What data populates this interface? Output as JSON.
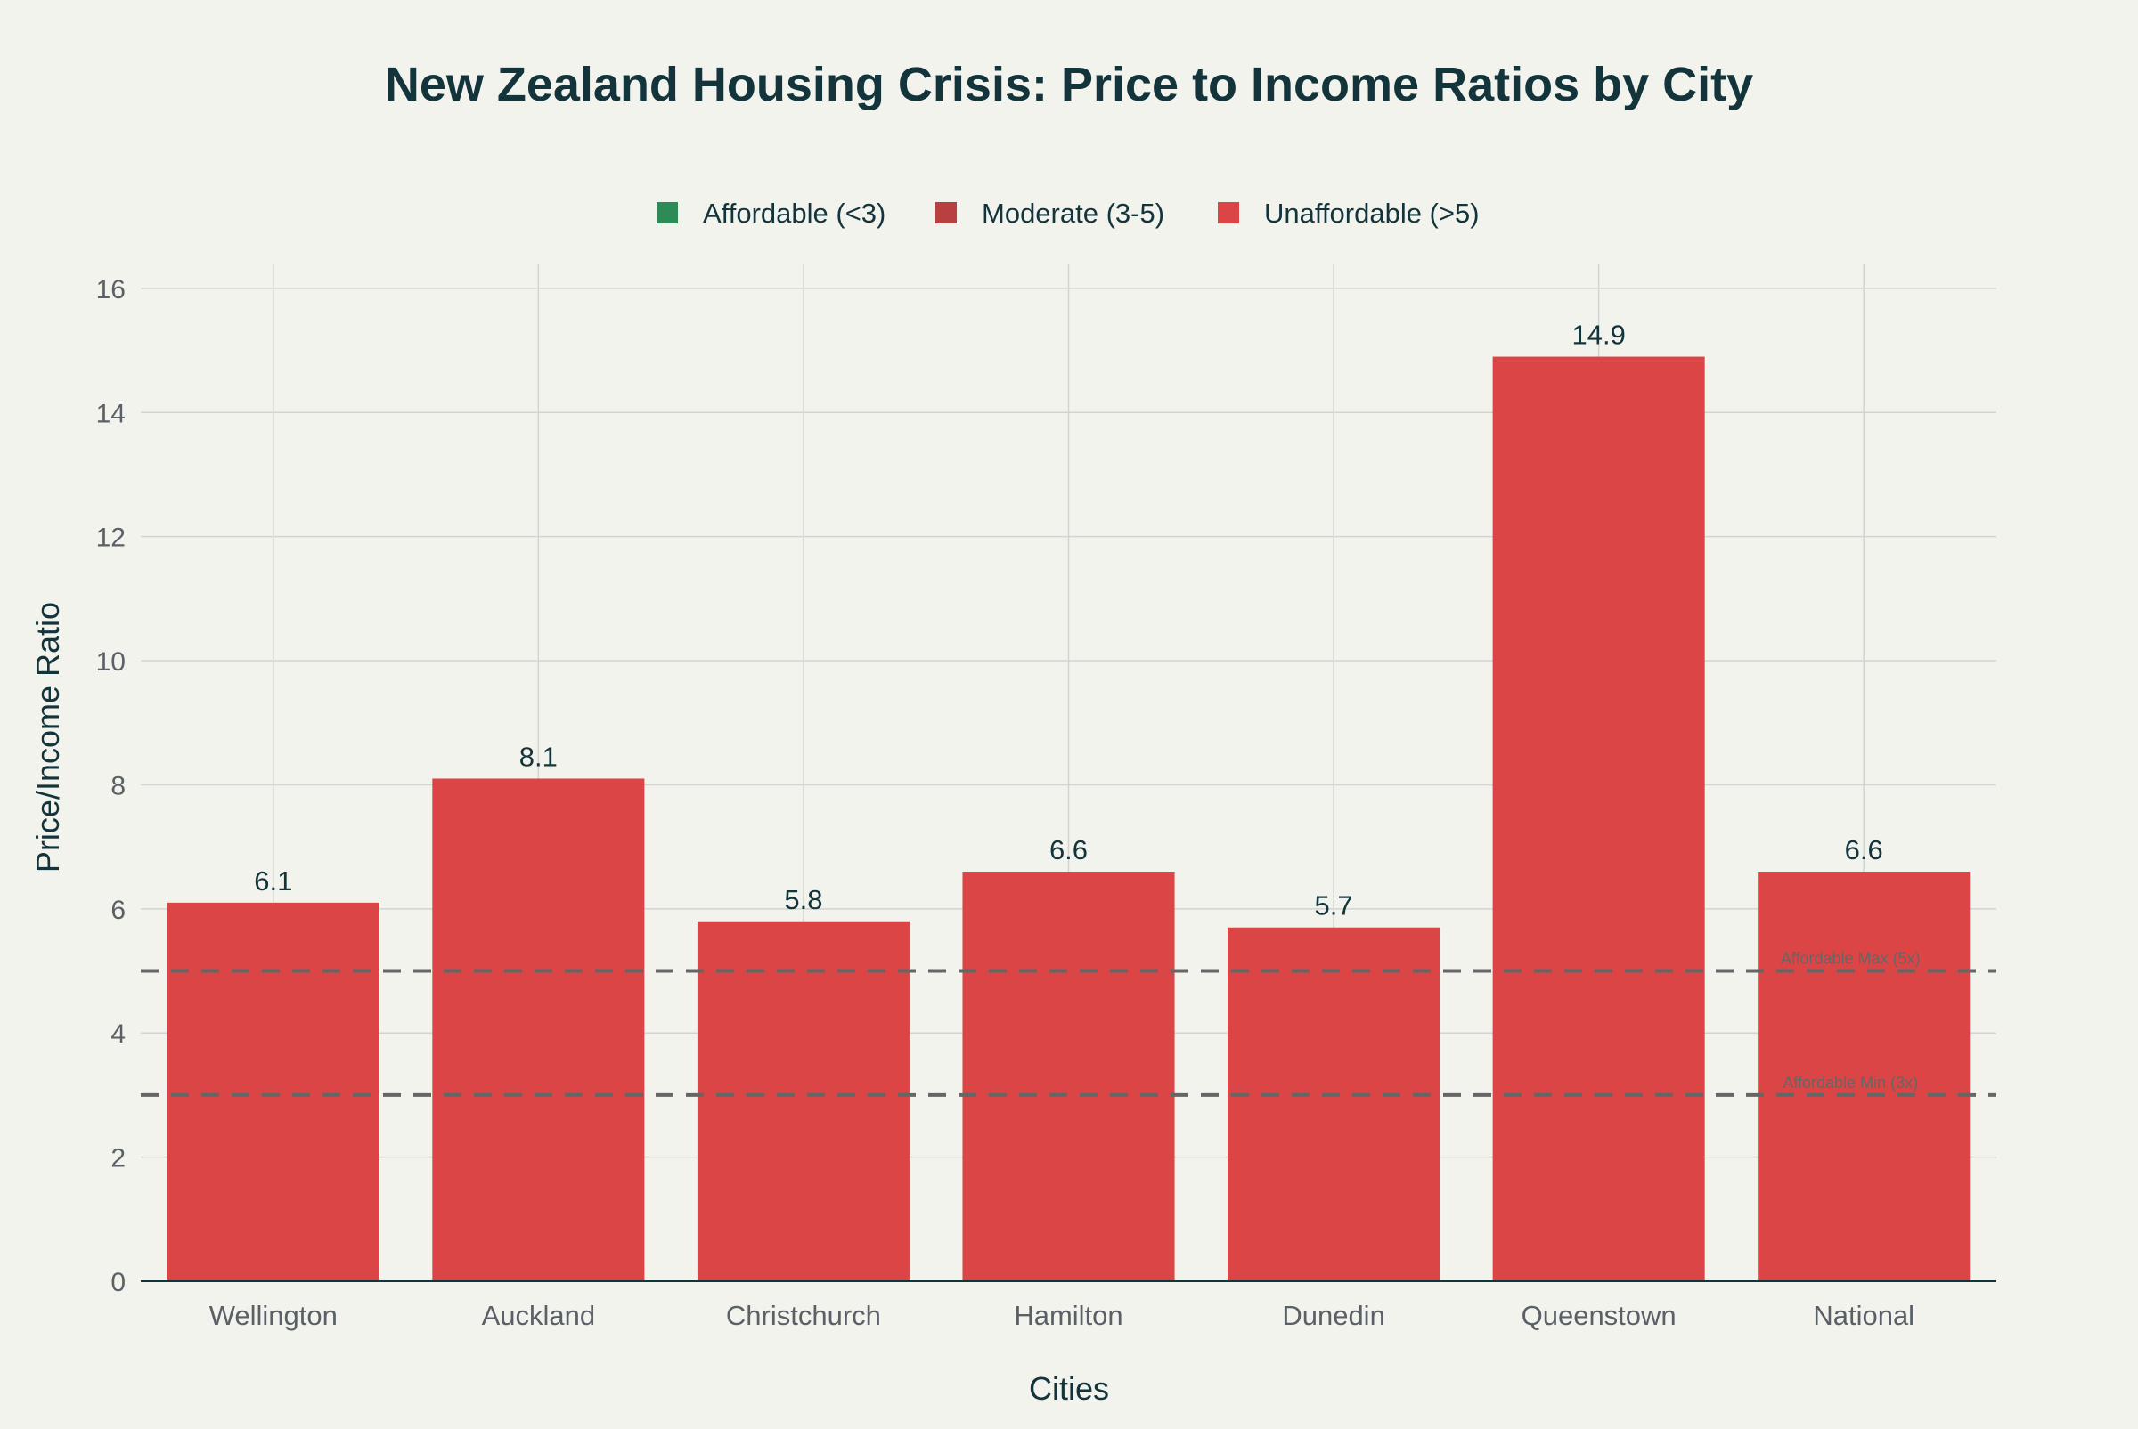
{
  "chart_data": {
    "type": "bar",
    "title": "New Zealand Housing Crisis: Price to Income Ratios by City",
    "xlabel": "Cities",
    "ylabel": "Price/Income Ratio",
    "categories": [
      "Wellington",
      "Auckland",
      "Christchurch",
      "Hamilton",
      "Dunedin",
      "Queenstown",
      "National"
    ],
    "values": [
      6.1,
      8.1,
      5.8,
      6.6,
      5.7,
      14.9,
      6.6
    ],
    "value_labels": [
      "6.1",
      "8.1",
      "5.8",
      "6.6",
      "5.7",
      "14.9",
      "6.6"
    ],
    "bar_category": [
      "Unaffordable (>5)",
      "Unaffordable (>5)",
      "Unaffordable (>5)",
      "Unaffordable (>5)",
      "Unaffordable (>5)",
      "Unaffordable (>5)",
      "Unaffordable (>5)"
    ],
    "ylim": [
      0,
      16.4
    ],
    "yticks": [
      0,
      2,
      4,
      6,
      8,
      10,
      12,
      14,
      16
    ],
    "grid": true,
    "legend_position": "top-center",
    "legend": [
      {
        "label": "Affordable (<3)",
        "color": "#2e8b57"
      },
      {
        "label": "Moderate (3-5)",
        "color": "#b94040"
      },
      {
        "label": "Unaffordable (>5)",
        "color": "#db4545"
      }
    ],
    "reference_lines": [
      {
        "value": 5,
        "label": "Affordable Max (5x)"
      },
      {
        "value": 3,
        "label": "Affordable Min (3x)"
      }
    ],
    "colors": {
      "bar": "#db4545",
      "text": "#13343b",
      "axis_text": "#5a6166",
      "grid": "#d2d4cf",
      "reference_line": "#666666",
      "background": "#f3f3ee"
    }
  }
}
